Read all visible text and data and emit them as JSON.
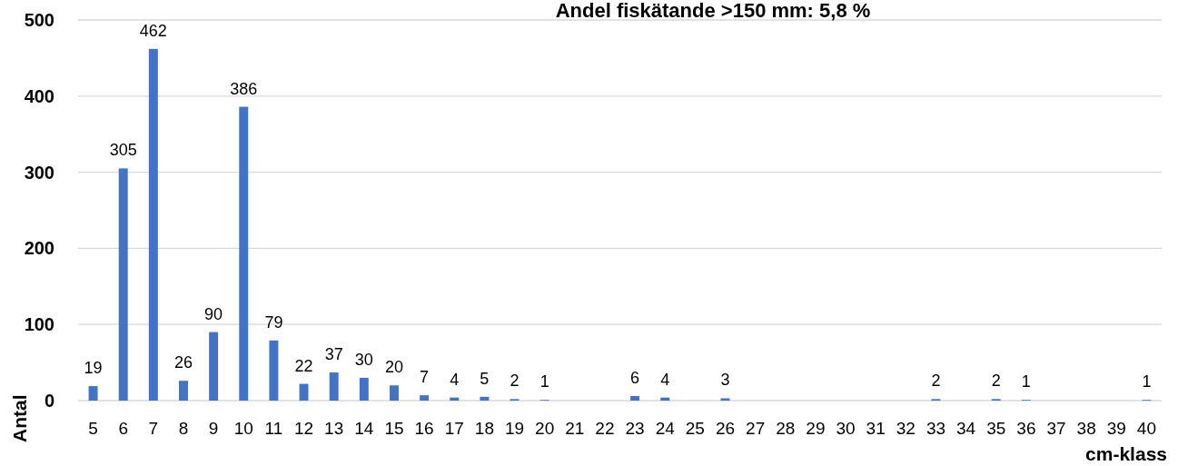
{
  "chart_data": {
    "type": "bar",
    "title": "Andel fiskätande >150 mm: 5,8 %",
    "xlabel": "cm-klass",
    "ylabel": "Antal",
    "categories": [
      "5",
      "6",
      "7",
      "8",
      "9",
      "10",
      "11",
      "12",
      "13",
      "14",
      "15",
      "16",
      "17",
      "18",
      "19",
      "20",
      "21",
      "22",
      "23",
      "24",
      "25",
      "26",
      "27",
      "28",
      "29",
      "30",
      "31",
      "32",
      "33",
      "34",
      "35",
      "36",
      "37",
      "38",
      "39",
      "40"
    ],
    "values": [
      19,
      305,
      462,
      26,
      90,
      386,
      79,
      22,
      37,
      30,
      20,
      7,
      4,
      5,
      2,
      1,
      null,
      null,
      6,
      4,
      null,
      3,
      null,
      null,
      null,
      null,
      null,
      null,
      2,
      null,
      2,
      1,
      null,
      null,
      null,
      1
    ],
    "color": "#4472c4",
    "ylim": [
      0,
      500
    ],
    "yticks": [
      0,
      100,
      200,
      300,
      400,
      500
    ],
    "grid": "y",
    "data_labels": true
  }
}
